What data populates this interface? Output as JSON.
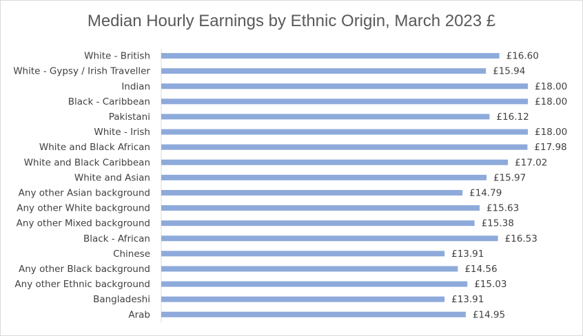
{
  "chart_data": {
    "type": "bar",
    "orientation": "horizontal",
    "title": "Median Hourly Earnings by Ethnic Origin, March 2023 £",
    "xlabel": "",
    "ylabel": "",
    "grid": false,
    "legend": "none",
    "xlim": [
      0,
      18
    ],
    "bar_color": "#8eaadb",
    "categories": [
      "White - British",
      "White - Gypsy / Irish Traveller",
      "Indian",
      "Black - Caribbean",
      "Pakistani",
      "White - Irish",
      "White and Black African",
      "White and Black Caribbean",
      "White and Asian",
      "Any other Asian background",
      "Any other White background",
      "Any other Mixed background",
      "Black - African",
      "Chinese",
      "Any other Black background",
      "Any other Ethnic background",
      "Bangladeshi",
      "Arab"
    ],
    "values": [
      16.6,
      15.94,
      18.0,
      18.0,
      16.12,
      18.0,
      17.98,
      17.02,
      15.97,
      14.79,
      15.63,
      15.38,
      16.53,
      13.91,
      14.56,
      15.03,
      13.91,
      14.95
    ],
    "data_labels": [
      "£16.60",
      "£15.94",
      "£18.00",
      "£18.00",
      "£16.12",
      "£18.00",
      "£17.98",
      "£17.02",
      "£15.97",
      "£14.79",
      "£15.63",
      "£15.38",
      "£16.53",
      "£13.91",
      "£14.56",
      "£15.03",
      "£13.91",
      "£14.95"
    ]
  }
}
